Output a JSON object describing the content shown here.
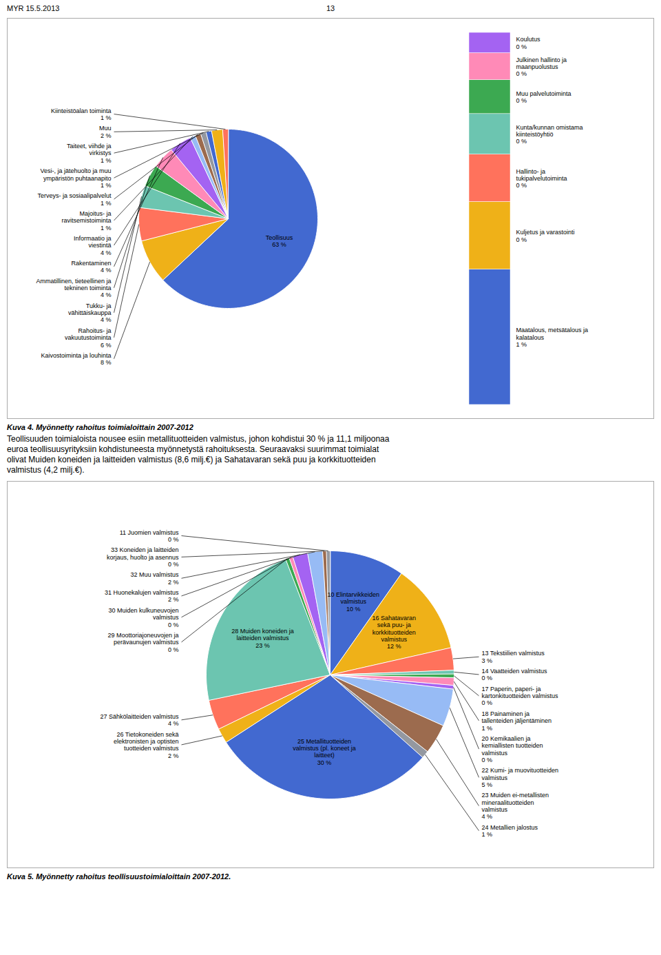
{
  "chart_data": [
    {
      "type": "pie",
      "title": "Kuva 4. Myönnetty rahoitus toimialoittain 2007-2012",
      "annotations": [
        "MYR 15.5.2013",
        "13",
        "Teollisuuden toimialoista nousee esiin metallituotteiden valmistus, johon kohdistui 30 % ja 11,1 miljoonaa\neuroa teollisuusyrityksiin kohdistuneesta myönnetystä rahoituksesta.  Seuraavaksi suurimmat toimialat\nolivat Muiden koneiden ja laitteiden valmistus (8,6 milj.€) ja Sahatavaran sekä puu ja korkkituotteiden\nvalmistus (4,2 milj.€)."
      ],
      "categories": [
        "Teollisuus",
        "Kaivostoiminta ja louhinta",
        "Rahoitus- ja\nvakuutustoiminta",
        "Tukku- ja\nvähittäiskauppa",
        "Ammatillinen, tieteellinen ja\ntekninen toiminta",
        "Rakentaminen",
        "Informaatio ja\nviestintä",
        "Majoitus- ja\nravitsemistoiminta",
        "Terveys- ja sosiaalipalvelut",
        "Vesi-, ja jätehuolto ja muu\nympäristön puhtaanapito",
        "Taiteet, viihde ja\nvirkistys",
        "Muu",
        "Kiinteistöalan toiminta"
      ],
      "values": [
        63,
        8,
        6,
        4,
        4,
        4,
        4,
        1,
        1,
        1,
        1,
        2,
        1
      ],
      "value_labels": [
        "63 %",
        "8 %",
        "6 %",
        "4 %",
        "4 %",
        "4 %",
        "4 %",
        "1 %",
        "1 %",
        "1 %",
        "1 %",
        "2 %",
        "1 %"
      ],
      "data_labels": true
    },
    {
      "type": "bar",
      "stacked": true,
      "categories": [
        "Maatalous, metsätalous ja\nkalatalous",
        "Kuljetus ja varastointi",
        "Hallinto- ja\ntukipalvelutoiminta",
        "Kunta/kunnan omistama\nkiinteistöyhtiö",
        "Muu palvelutoiminta",
        "Julkinen hallinto ja\nmaanpuolustus",
        "Koulutus"
      ],
      "values": [
        1.0,
        0.5,
        0.35,
        0.3,
        0.25,
        0.2,
        0.15
      ],
      "value_labels": [
        "1 %",
        "0 %",
        "0 %",
        "0 %",
        "0 %",
        "0 %",
        "0 %"
      ],
      "data_labels": true,
      "ylim": [
        0,
        2.75
      ],
      "tick_labels": false
    },
    {
      "type": "pie",
      "title": "Kuva 5. Myönnetty rahoitus teollisuustoimialoittain 2007-2012.",
      "categories": [
        "10 Elintarvikkeiden\nvalmistus",
        "16 Sahatavaran\nsekä puu- ja\nkorkkituotteiden\nvalmistus",
        "13 Tekstiilien valmistus",
        "14 Vaatteiden valmistus",
        "17 Paperin, paperi- ja\nkartonkituotteiden valmistus",
        "18 Painaminen ja\ntallenteiden jäljentäminen",
        "20 Kemikaalien ja\nkemiallisten tuotteiden\nvalmistus",
        "22 Kumi- ja muovituotteiden\nvalmistus",
        "23 Muiden ei-metallisten\nmineraalituotteiden\nvalmistus",
        "24 Metallien jalostus",
        "25 Metallituotteiden\nvalmistus (pl. koneet ja\nlaitteet)",
        "26 Tietokoneiden sekä\nelektronisten ja optisten\ntuotteiden valmistus",
        "27 Sähkölaitteiden valmistus",
        "28 Muiden koneiden ja\nlaitteiden valmistus",
        "29 Moottoriajoneuvojen ja\nperävaunujen valmistus",
        "30 Muiden kulkuneuvojen\nvalmistus",
        "31 Huonekalujen valmistus",
        "32 Muu valmistus",
        "33 Koneiden ja laitteiden\nkorjaus, huolto ja asennus",
        "11 Juomien valmistus"
      ],
      "values": [
        10,
        12,
        3,
        0.5,
        0.5,
        1,
        0.5,
        5,
        4,
        1,
        30,
        2,
        4,
        23,
        0.5,
        0.5,
        2,
        2,
        0.5,
        0.5
      ],
      "value_labels": [
        "10 %",
        "12 %",
        "3 %",
        "0 %",
        "0 %",
        "1 %",
        "0 %",
        "5 %",
        "4 %",
        "1 %",
        "30 %",
        "2 %",
        "4 %",
        "23 %",
        "0 %",
        "0 %",
        "2 %",
        "2 %",
        "0 %",
        "0 %"
      ],
      "data_labels": true
    }
  ]
}
